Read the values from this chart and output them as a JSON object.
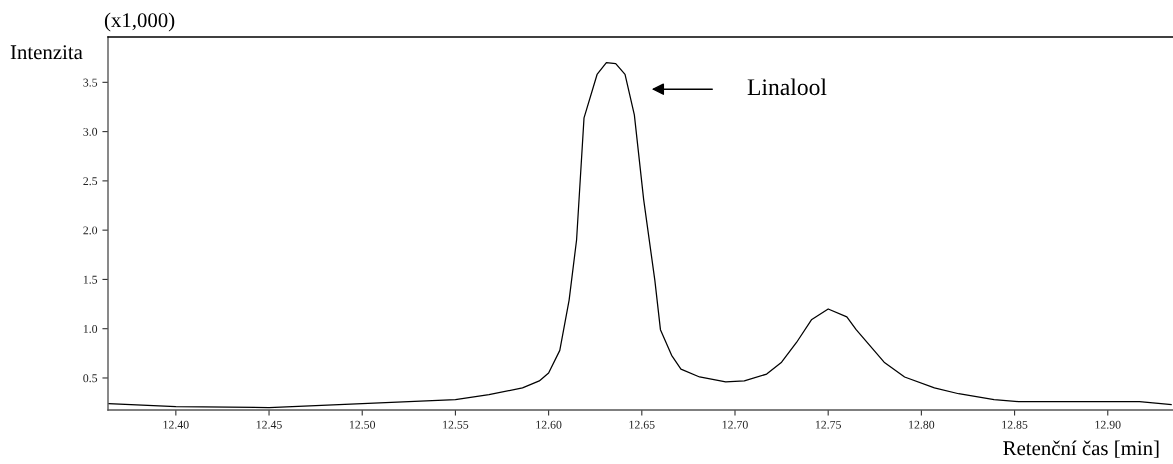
{
  "chart_data": {
    "type": "line",
    "xlabel": "Retenční čas [min]",
    "ylabel": "Intenzita",
    "annotations": [
      "(x1,000)",
      "Linalool"
    ],
    "x": [
      12.364,
      12.4,
      12.45,
      12.5,
      12.55,
      12.568,
      12.586,
      12.595,
      12.6,
      12.606,
      12.611,
      12.615,
      12.619,
      12.626,
      12.631,
      12.636,
      12.641,
      12.646,
      12.651,
      12.657,
      12.66,
      12.666,
      12.671,
      12.681,
      12.695,
      12.705,
      12.717,
      12.725,
      12.733,
      12.741,
      12.75,
      12.76,
      12.765,
      12.78,
      12.791,
      12.807,
      12.82,
      12.839,
      12.852,
      12.917,
      12.934
    ],
    "series": [
      {
        "color": "#000000",
        "values": [
          0.24,
          0.21,
          0.2,
          0.24,
          0.28,
          0.33,
          0.4,
          0.47,
          0.55,
          0.78,
          1.29,
          1.9,
          3.14,
          3.58,
          3.7,
          3.69,
          3.58,
          3.17,
          2.31,
          1.49,
          0.99,
          0.73,
          0.59,
          0.51,
          0.46,
          0.47,
          0.54,
          0.66,
          0.86,
          1.09,
          1.2,
          1.12,
          0.99,
          0.66,
          0.51,
          0.4,
          0.34,
          0.28,
          0.26,
          0.26,
          0.23
        ]
      }
    ],
    "xlim": [
      12.3636,
      12.935
    ],
    "ylim": [
      0.175,
      3.96
    ],
    "xticks": [
      {
        "value": 12.4,
        "label": "12.40"
      },
      {
        "value": 12.45,
        "label": "12.45"
      },
      {
        "value": 12.5,
        "label": "12.50"
      },
      {
        "value": 12.55,
        "label": "12.55"
      },
      {
        "value": 12.6,
        "label": "12.60"
      },
      {
        "value": 12.65,
        "label": "12.65"
      },
      {
        "value": 12.7,
        "label": "12.70"
      },
      {
        "value": 12.75,
        "label": "12.75"
      },
      {
        "value": 12.8,
        "label": "12.80"
      },
      {
        "value": 12.85,
        "label": "12.85"
      },
      {
        "value": 12.9,
        "label": "12.90"
      }
    ],
    "yticks": [
      0.5,
      {
        "value": 1,
        "label": "1.0"
      },
      1.5,
      {
        "value": 2,
        "label": "2.0"
      },
      2.5,
      {
        "value": 3,
        "label": "3.0"
      },
      3.5
    ],
    "grid": false,
    "legend": false,
    "marker": "none",
    "line_style": "solid"
  }
}
